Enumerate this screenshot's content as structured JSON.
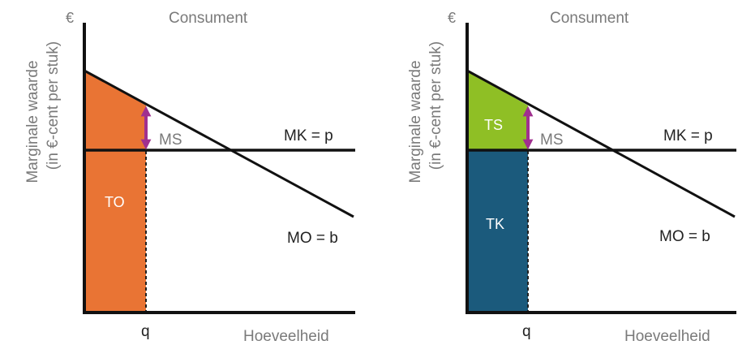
{
  "left": {
    "currency": "€",
    "title": "Consument",
    "ylabel_line1": "Marginale  waarde",
    "ylabel_line2": "(in €-cent per stuk)",
    "xlabel": "Hoeveelheid",
    "q_label": "q",
    "mk_label": "MK = p",
    "mo_label": "MO = b",
    "ms_label": "MS",
    "area_label": "TO",
    "colors": {
      "area": "#e97434",
      "arrow": "#a0308f"
    }
  },
  "right": {
    "currency": "€",
    "title": "Consument",
    "ylabel_line1": "Marginale  waarde",
    "ylabel_line2": "(in €-cent per stuk)",
    "xlabel": "Hoeveelheid",
    "q_label": "q",
    "mk_label": "MK = p",
    "mo_label": "MO = b",
    "ms_label": "MS",
    "upper_label": "TS",
    "lower_label": "TK",
    "colors": {
      "upper": "#8fbf25",
      "lower": "#1b5a7c",
      "arrow": "#a0308f"
    }
  }
}
